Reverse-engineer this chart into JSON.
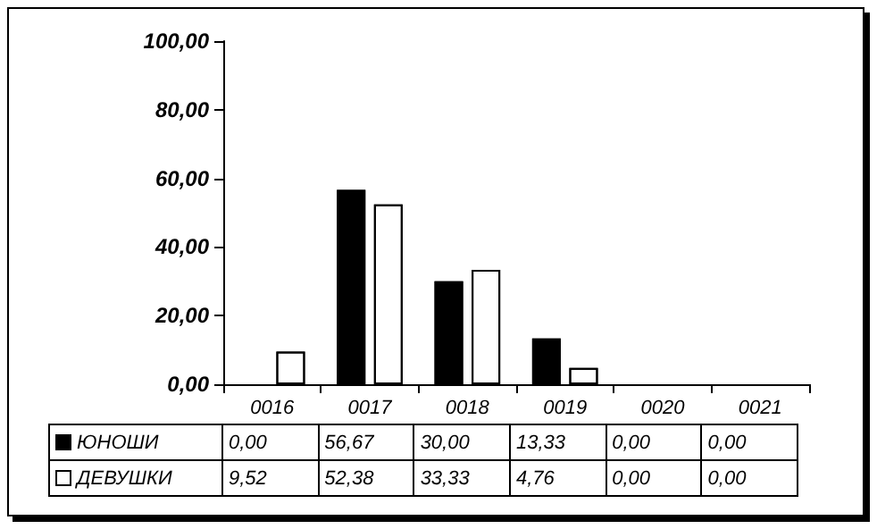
{
  "chart_data": {
    "type": "bar",
    "categories": [
      "0016",
      "0017",
      "0018",
      "0019",
      "0020",
      "0021"
    ],
    "series": [
      {
        "name": "ЮНОШИ",
        "color": "#000000",
        "values": [
          0,
          56.67,
          30,
          13.33,
          0,
          0
        ],
        "value_labels": [
          "0,00",
          "56,67",
          "30,00",
          "13,33",
          "0,00",
          "0,00"
        ]
      },
      {
        "name": "ДЕВУШКИ",
        "color": "#ffffff",
        "values": [
          9.52,
          52.38,
          33.33,
          4.76,
          0,
          0
        ],
        "value_labels": [
          "9,52",
          "52,38",
          "33,33",
          "4,76",
          "0,00",
          "0,00"
        ]
      }
    ],
    "ylim": [
      0,
      100
    ],
    "yticks": [
      {
        "value": 0,
        "label": "0,00"
      },
      {
        "value": 20,
        "label": "20,00"
      },
      {
        "value": 40,
        "label": "40,00"
      },
      {
        "value": 60,
        "label": "60,00"
      },
      {
        "value": 80,
        "label": "80,00"
      },
      {
        "value": 100,
        "label": "100,00"
      }
    ],
    "grid": false,
    "legend": "bottom"
  }
}
